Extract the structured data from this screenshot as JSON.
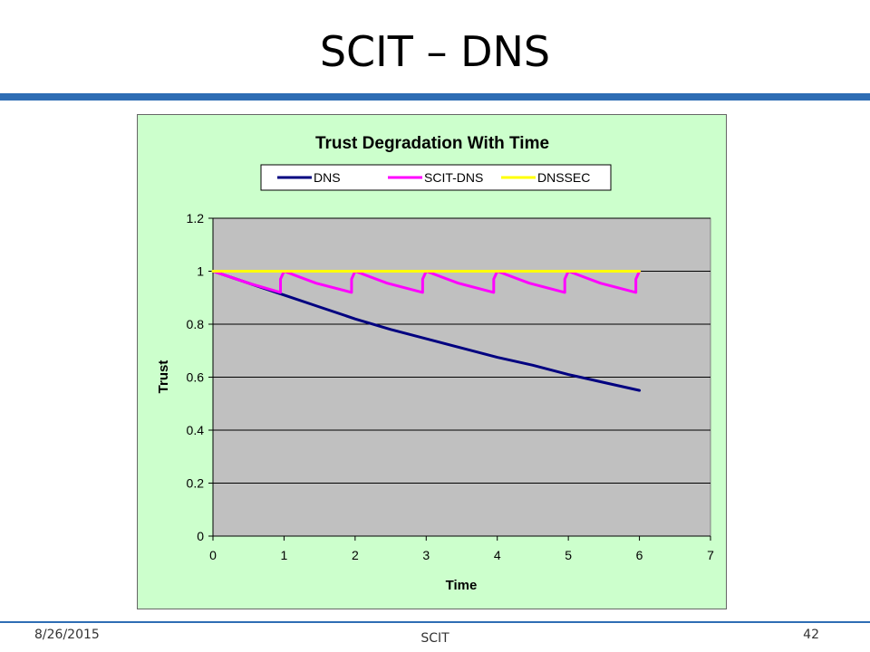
{
  "slide": {
    "title": "SCIT – DNS"
  },
  "footer": {
    "date": "8/26/2015",
    "center": "SCIT",
    "page": "42"
  },
  "colors": {
    "title_rule": "#2e6db4",
    "chart_bg": "#ccffcc",
    "plot_bg": "#c0c0c0"
  },
  "chart_data": {
    "type": "line",
    "title": "Trust Degradation With Time",
    "xlabel": "Time",
    "ylabel": "Trust",
    "xlim": [
      0,
      7
    ],
    "ylim": [
      0,
      1.2
    ],
    "xticks": [
      "0",
      "1",
      "2",
      "3",
      "4",
      "5",
      "6",
      "7"
    ],
    "yticks": [
      "0",
      "0.2",
      "0.4",
      "0.6",
      "0.8",
      "1",
      "1.2"
    ],
    "grid": "horizontal",
    "legend_position": "top",
    "series": [
      {
        "name": "DNS",
        "color": "#000080",
        "x": [
          0,
          0.5,
          1,
          1.5,
          2,
          2.5,
          3,
          3.5,
          4,
          4.5,
          5,
          5.5,
          6
        ],
        "y": [
          1.0,
          0.955,
          0.91,
          0.865,
          0.82,
          0.78,
          0.745,
          0.71,
          0.675,
          0.645,
          0.61,
          0.58,
          0.55
        ]
      },
      {
        "name": "SCIT-DNS",
        "color": "#ff00ff",
        "x": [
          0,
          0.5,
          0.95,
          0.95,
          1,
          1.45,
          1.95,
          1.95,
          2,
          2.45,
          2.95,
          2.95,
          3,
          3.45,
          3.95,
          3.95,
          4,
          4.45,
          4.95,
          4.95,
          5,
          5.45,
          5.95,
          5.95,
          6
        ],
        "y": [
          1.0,
          0.955,
          0.92,
          0.97,
          1.0,
          0.955,
          0.92,
          0.97,
          1.0,
          0.955,
          0.92,
          0.97,
          1.0,
          0.955,
          0.92,
          0.97,
          1.0,
          0.955,
          0.92,
          0.97,
          1.0,
          0.955,
          0.92,
          0.97,
          1.0
        ]
      },
      {
        "name": "DNSSEC",
        "color": "#ffff00",
        "x": [
          0,
          6
        ],
        "y": [
          1.0,
          1.0
        ]
      }
    ]
  }
}
